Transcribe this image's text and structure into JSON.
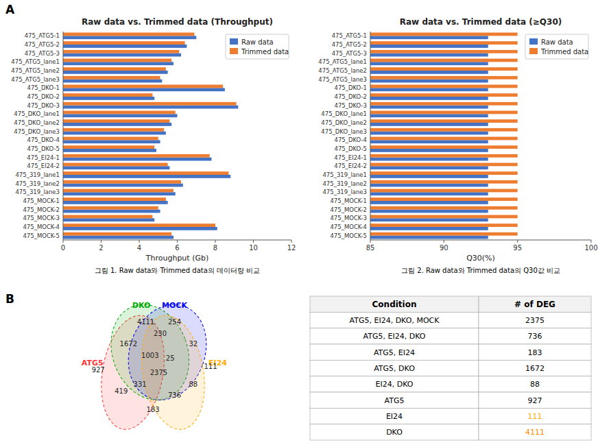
{
  "chart_data": [
    {
      "type": "bar",
      "orientation": "horizontal",
      "title": "Raw data vs. Trimmed data (Throughput)",
      "xlabel": "Throughput (Gb)",
      "annotations": [
        "A",
        "그림 1. Raw data와 Trimmed data의 데이터량 비교"
      ],
      "categories": [
        "475_ATG5-1",
        "475_ATG5-2",
        "475_ATG5-3",
        "475_ATG5_lane1",
        "475_ATG5_lane2",
        "475_ATG5_lane3",
        "475_DKO-1",
        "475_DKO-2",
        "475_DKO-3",
        "475_DKO_lane1",
        "475_DKO_lane2",
        "475_DKO_lane3",
        "475_DKO-4",
        "475_DKO-5",
        "475_EI24-1",
        "475_EI24-2",
        "475_319_lane1",
        "475_319_lane2",
        "475_319_lane3",
        "475_MOCK-1",
        "475_MOCK-2",
        "475_MOCK-3",
        "475_MOCK-4",
        "475_MOCK-5"
      ],
      "series": [
        {
          "name": "Raw data",
          "color": "#4472C4",
          "values": [
            7.0,
            6.5,
            6.2,
            5.8,
            5.5,
            5.2,
            8.5,
            4.8,
            9.2,
            6.0,
            5.7,
            5.4,
            5.1,
            4.9,
            7.8,
            5.6,
            8.8,
            6.3,
            5.9,
            5.5,
            5.1,
            4.8,
            8.1,
            5.8
          ]
        },
        {
          "name": "Trimmed data",
          "color": "#ED7D31",
          "values": [
            6.9,
            6.4,
            6.1,
            5.7,
            5.4,
            5.1,
            8.4,
            4.7,
            9.1,
            5.9,
            5.6,
            5.3,
            5.0,
            4.8,
            7.7,
            5.5,
            8.7,
            6.2,
            5.8,
            5.4,
            5.0,
            4.7,
            8.0,
            5.7
          ]
        }
      ],
      "xlim": [
        0,
        12
      ],
      "xticks": [
        0,
        2,
        4,
        6,
        8,
        10,
        12
      ],
      "legend": "upper right",
      "grid": false
    },
    {
      "type": "bar",
      "orientation": "horizontal",
      "title": "Raw data vs. Trimmed data (≥Q30)",
      "xlabel": "Q30(%)",
      "annotations": [
        "그림 2. Raw data와 Trimmed data의 Q30값 비교"
      ],
      "categories": [
        "475_ATG5-1",
        "475_ATG5-2",
        "475_ATG5-3",
        "475_ATG5_lane1",
        "475_ATG5_lane2",
        "475_ATG5_lane3",
        "475_DKO-1",
        "475_DKO-2",
        "475_DKO-3",
        "475_DKO_lane1",
        "475_DKO_lane2",
        "475_DKO_lane3",
        "475_DKO-4",
        "475_DKO-5",
        "475_EI24-1",
        "475_EI24-2",
        "475_319_lane1",
        "475_319_lane2",
        "475_319_lane3",
        "475_MOCK-1",
        "475_MOCK-2",
        "475_MOCK-3",
        "475_MOCK-4",
        "475_MOCK-5"
      ],
      "series": [
        {
          "name": "Raw data",
          "color": "#4472C4",
          "values": [
            93,
            93,
            93,
            93,
            93,
            93,
            93,
            93,
            93,
            93,
            93,
            93,
            93,
            93,
            93,
            93,
            93,
            93,
            93,
            93,
            93,
            93,
            93,
            93
          ]
        },
        {
          "name": "Trimmed data",
          "color": "#ED7D31",
          "values": [
            95,
            95,
            95,
            95,
            95,
            95,
            95,
            95,
            95,
            95,
            95,
            95,
            95,
            95,
            95,
            95,
            95,
            95,
            95,
            95,
            95,
            95,
            95,
            95
          ]
        }
      ],
      "xlim": [
        85,
        100
      ],
      "xticks": [
        85,
        90,
        95,
        100
      ],
      "legend": "upper right",
      "grid": false
    },
    {
      "type": "venn",
      "annotations": [
        "B"
      ],
      "series": [
        {
          "name": "ATG5",
          "color": "#FF3333"
        },
        {
          "name": "DKO",
          "color": "#00AA00"
        },
        {
          "name": "MOCK",
          "color": "#0000EE"
        },
        {
          "name": "EI24",
          "color": "#FFAA00"
        }
      ],
      "values": [
        927,
        4111,
        254,
        111,
        1672,
        230,
        32,
        419,
        88,
        1003,
        25,
        331,
        736,
        2375,
        183
      ],
      "data_labels": true
    },
    {
      "type": "table",
      "columns": [
        "Condition",
        "# of DEG"
      ],
      "categories": [
        "ATG5, EI24, DKO, MOCK",
        "ATG5, EI24, DKO",
        "ATG5, EI24",
        "ATG5, DKO",
        "EI24, DKO",
        "ATG5",
        "EI24",
        "DKO"
      ],
      "values": [
        2375,
        736,
        183,
        1672,
        88,
        927,
        111,
        4111
      ],
      "colors": [
        "#000000",
        "#000000",
        "#000000",
        "#000000",
        "#000000",
        "#000000",
        "#FFAA00",
        "#FF8800"
      ]
    }
  ]
}
